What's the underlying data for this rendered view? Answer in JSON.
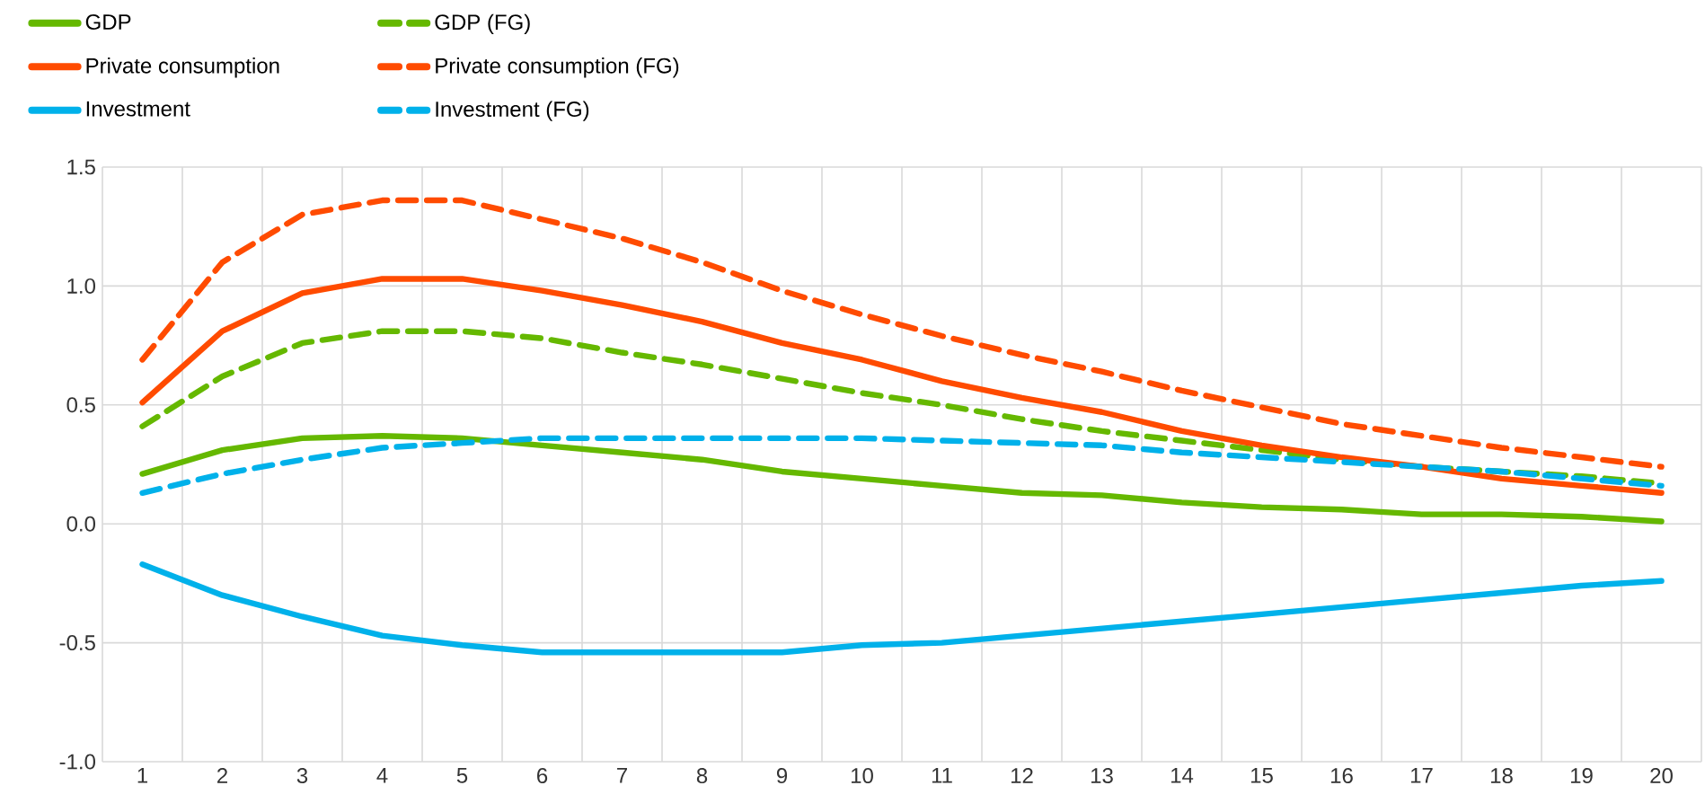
{
  "chart_data": {
    "type": "line",
    "categories": [
      "1",
      "2",
      "3",
      "4",
      "5",
      "6",
      "7",
      "8",
      "9",
      "10",
      "11",
      "12",
      "13",
      "14",
      "15",
      "16",
      "17",
      "18",
      "19",
      "20"
    ],
    "ylim": [
      -1.0,
      1.5
    ],
    "yticks": [
      {
        "value": -1.0,
        "label": "-1.0"
      },
      {
        "value": -0.5,
        "label": "-0.5"
      },
      {
        "value": 0.0,
        "label": "0.0"
      },
      {
        "value": 0.5,
        "label": "0.5"
      },
      {
        "value": 1.0,
        "label": "1.0"
      },
      {
        "value": 1.5,
        "label": "1.5"
      }
    ],
    "grid": true,
    "legend": "top left",
    "marker": "none",
    "series": [
      {
        "name": "GDP",
        "color": "#65b800",
        "line_style": "solid",
        "values": [
          0.21,
          0.31,
          0.36,
          0.37,
          0.36,
          0.33,
          0.3,
          0.27,
          0.22,
          0.19,
          0.16,
          0.13,
          0.12,
          0.09,
          0.07,
          0.06,
          0.04,
          0.04,
          0.03,
          0.01
        ]
      },
      {
        "name": "Private consumption",
        "color": "#ff4b00",
        "line_style": "solid",
        "values": [
          0.51,
          0.81,
          0.97,
          1.03,
          1.03,
          0.98,
          0.92,
          0.85,
          0.76,
          0.69,
          0.6,
          0.53,
          0.47,
          0.39,
          0.33,
          0.28,
          0.24,
          0.19,
          0.16,
          0.13
        ]
      },
      {
        "name": "Investment",
        "color": "#00b1ea",
        "line_style": "solid",
        "values": [
          -0.17,
          -0.3,
          -0.39,
          -0.47,
          -0.51,
          -0.54,
          -0.54,
          -0.54,
          -0.54,
          -0.51,
          -0.5,
          -0.47,
          -0.44,
          -0.41,
          -0.38,
          -0.35,
          -0.32,
          -0.29,
          -0.26,
          -0.24
        ]
      },
      {
        "name": "GDP (FG)",
        "color": "#65b800",
        "line_style": "dashed",
        "values": [
          0.41,
          0.62,
          0.76,
          0.81,
          0.81,
          0.78,
          0.72,
          0.67,
          0.61,
          0.55,
          0.5,
          0.44,
          0.39,
          0.35,
          0.31,
          0.27,
          0.24,
          0.22,
          0.2,
          0.17
        ]
      },
      {
        "name": "Private consumption  (FG)",
        "color": "#ff4b00",
        "line_style": "dashed",
        "values": [
          0.69,
          1.1,
          1.3,
          1.36,
          1.36,
          1.28,
          1.2,
          1.1,
          0.98,
          0.88,
          0.79,
          0.71,
          0.64,
          0.56,
          0.49,
          0.42,
          0.37,
          0.32,
          0.28,
          0.24
        ]
      },
      {
        "name": "Investment (FG)",
        "color": "#00b1ea",
        "line_style": "dashed",
        "values": [
          0.13,
          0.21,
          0.27,
          0.32,
          0.34,
          0.36,
          0.36,
          0.36,
          0.36,
          0.36,
          0.35,
          0.34,
          0.33,
          0.3,
          0.28,
          0.26,
          0.24,
          0.22,
          0.19,
          0.16
        ]
      }
    ]
  }
}
